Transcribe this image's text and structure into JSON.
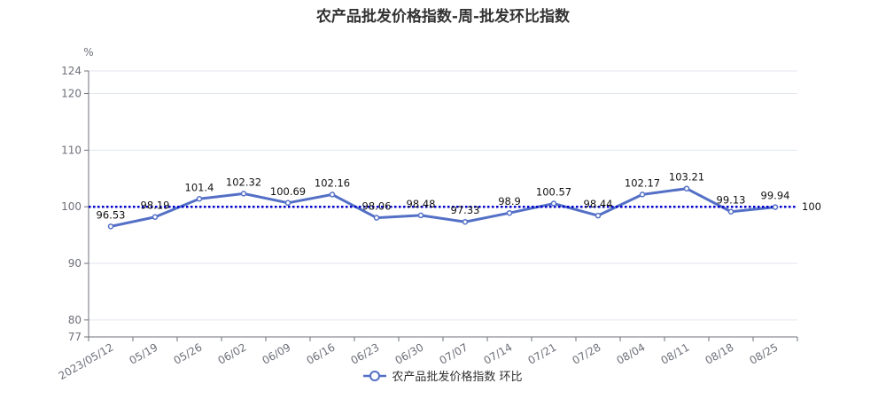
{
  "chart_data": {
    "type": "line",
    "title": "农产品批发价格指数-周-批发环比指数",
    "unit": "%",
    "categories": [
      "2023/05/12",
      "05/19",
      "05/26",
      "06/02",
      "06/09",
      "06/16",
      "06/23",
      "06/30",
      "07/07",
      "07/14",
      "07/21",
      "07/28",
      "08/04",
      "08/11",
      "08/18",
      "08/25"
    ],
    "series": [
      {
        "name": "农产品批发价格指数 环比",
        "color": "#5470c6",
        "values": [
          96.53,
          98.19,
          101.4,
          102.32,
          100.69,
          102.16,
          98.06,
          98.48,
          97.33,
          98.9,
          100.57,
          98.44,
          102.17,
          103.21,
          99.13,
          99.94
        ]
      }
    ],
    "ylim": [
      77,
      124
    ],
    "yticks": [
      77,
      80,
      90,
      100,
      110,
      120,
      124
    ],
    "reference_line": {
      "value": 100,
      "label": "100",
      "color": "#0000cc"
    },
    "grid": true,
    "legend_position": "bottom-center"
  }
}
